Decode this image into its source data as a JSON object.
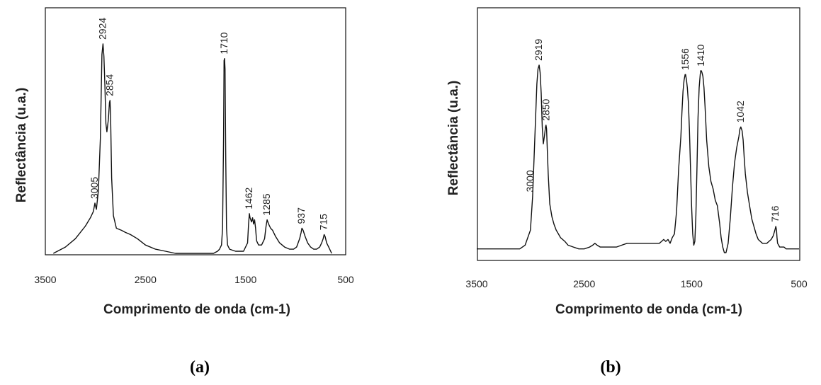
{
  "chart_data": [
    {
      "type": "line",
      "panel_label": "(a)",
      "xlabel": "Comprimento de onda (cm-1)",
      "ylabel": "Reflectância (u.a.)",
      "xlim": [
        3500,
        500
      ],
      "xticks": [
        "3500",
        "2500",
        "1500",
        "500"
      ],
      "peak_labels": [
        {
          "x": 3005,
          "y": 0.24,
          "text": "3005"
        },
        {
          "x": 2924,
          "y": 1.0,
          "text": "2924"
        },
        {
          "x": 2854,
          "y": 0.73,
          "text": "2854"
        },
        {
          "x": 1710,
          "y": 0.93,
          "text": "1710"
        },
        {
          "x": 1462,
          "y": 0.19,
          "text": "1462"
        },
        {
          "x": 1285,
          "y": 0.16,
          "text": "1285"
        },
        {
          "x": 937,
          "y": 0.12,
          "text": "937"
        },
        {
          "x": 715,
          "y": 0.09,
          "text": "715"
        }
      ],
      "series": [
        {
          "x": [
            3420,
            3300,
            3200,
            3100,
            3050,
            3020,
            3005,
            2990,
            2970,
            2950,
            2935,
            2924,
            2915,
            2905,
            2895,
            2885,
            2870,
            2860,
            2854,
            2848,
            2838,
            2820,
            2790,
            2740,
            2700,
            2650,
            2580,
            2500,
            2400,
            2300,
            2200,
            2100,
            2000,
            1900,
            1820,
            1780,
            1760,
            1740,
            1730,
            1720,
            1715,
            1710,
            1705,
            1698,
            1690,
            1680,
            1660,
            1600,
            1520,
            1480,
            1470,
            1462,
            1455,
            1440,
            1430,
            1420,
            1410,
            1400,
            1390,
            1370,
            1340,
            1310,
            1295,
            1285,
            1270,
            1250,
            1230,
            1200,
            1160,
            1110,
            1060,
            1020,
            990,
            960,
            945,
            937,
            925,
            905,
            880,
            850,
            820,
            790,
            760,
            740,
            725,
            715,
            705,
            690,
            670,
            650,
            640
          ],
          "y": [
            0.0,
            0.03,
            0.07,
            0.13,
            0.17,
            0.2,
            0.24,
            0.21,
            0.3,
            0.55,
            0.95,
            1.0,
            0.94,
            0.8,
            0.62,
            0.58,
            0.64,
            0.72,
            0.73,
            0.66,
            0.36,
            0.18,
            0.12,
            0.11,
            0.1,
            0.09,
            0.07,
            0.04,
            0.02,
            0.01,
            0.0,
            0.0,
            0.0,
            0.0,
            0.0,
            0.01,
            0.02,
            0.04,
            0.12,
            0.55,
            0.92,
            0.93,
            0.88,
            0.45,
            0.12,
            0.04,
            0.02,
            0.01,
            0.01,
            0.05,
            0.14,
            0.19,
            0.17,
            0.15,
            0.17,
            0.14,
            0.16,
            0.12,
            0.06,
            0.04,
            0.04,
            0.07,
            0.13,
            0.16,
            0.14,
            0.12,
            0.11,
            0.08,
            0.05,
            0.03,
            0.02,
            0.02,
            0.03,
            0.07,
            0.1,
            0.12,
            0.11,
            0.08,
            0.05,
            0.03,
            0.02,
            0.02,
            0.03,
            0.05,
            0.07,
            0.09,
            0.08,
            0.05,
            0.03,
            0.01,
            0.0
          ]
        }
      ]
    },
    {
      "type": "line",
      "panel_label": "(b)",
      "xlabel": "Comprimento de onda (cm-1)",
      "ylabel": "Reflectância (u.a.)",
      "xlim": [
        3500,
        500
      ],
      "xticks": [
        "3500",
        "2500",
        "1500",
        "500"
      ],
      "peak_labels": [
        {
          "x": 3000,
          "y": 0.3,
          "text": "3000"
        },
        {
          "x": 2919,
          "y": 1.0,
          "text": "2919"
        },
        {
          "x": 2850,
          "y": 0.68,
          "text": "2850"
        },
        {
          "x": 1556,
          "y": 0.95,
          "text": "1556"
        },
        {
          "x": 1410,
          "y": 0.97,
          "text": "1410"
        },
        {
          "x": 1042,
          "y": 0.67,
          "text": "1042"
        },
        {
          "x": 716,
          "y": 0.14,
          "text": "716"
        }
      ],
      "series": [
        {
          "x": [
            3500,
            3200,
            3100,
            3050,
            3000,
            2980,
            2960,
            2940,
            2930,
            2919,
            2910,
            2900,
            2890,
            2880,
            2870,
            2860,
            2855,
            2850,
            2843,
            2835,
            2820,
            2800,
            2780,
            2760,
            2740,
            2720,
            2700,
            2680,
            2650,
            2600,
            2550,
            2500,
            2450,
            2420,
            2400,
            2380,
            2350,
            2300,
            2250,
            2200,
            2150,
            2100,
            2050,
            2000,
            1950,
            1900,
            1850,
            1800,
            1780,
            1760,
            1740,
            1720,
            1700,
            1680,
            1660,
            1640,
            1620,
            1600,
            1590,
            1580,
            1570,
            1560,
            1556,
            1548,
            1540,
            1530,
            1520,
            1510,
            1500,
            1490,
            1480,
            1470,
            1460,
            1450,
            1440,
            1430,
            1420,
            1415,
            1410,
            1403,
            1395,
            1385,
            1375,
            1360,
            1340,
            1320,
            1300,
            1280,
            1260,
            1240,
            1225,
            1210,
            1200,
            1195,
            1180,
            1160,
            1140,
            1120,
            1100,
            1080,
            1060,
            1050,
            1042,
            1030,
            1020,
            1010,
            1000,
            980,
            960,
            940,
            920,
            900,
            880,
            860,
            840,
            820,
            800,
            780,
            760,
            740,
            730,
            720,
            716,
            710,
            705,
            700,
            690,
            680,
            660,
            640,
            620,
            600,
            560,
            520,
            500
          ],
          "y": [
            0.02,
            0.02,
            0.02,
            0.04,
            0.12,
            0.3,
            0.6,
            0.9,
            0.98,
            1.0,
            0.96,
            0.85,
            0.67,
            0.58,
            0.62,
            0.67,
            0.68,
            0.66,
            0.55,
            0.42,
            0.26,
            0.19,
            0.15,
            0.12,
            0.1,
            0.08,
            0.07,
            0.06,
            0.04,
            0.03,
            0.02,
            0.02,
            0.03,
            0.04,
            0.05,
            0.04,
            0.03,
            0.03,
            0.03,
            0.03,
            0.04,
            0.05,
            0.05,
            0.05,
            0.05,
            0.05,
            0.05,
            0.05,
            0.06,
            0.07,
            0.06,
            0.07,
            0.05,
            0.08,
            0.1,
            0.22,
            0.45,
            0.62,
            0.75,
            0.86,
            0.92,
            0.95,
            0.95,
            0.92,
            0.88,
            0.8,
            0.65,
            0.45,
            0.25,
            0.1,
            0.04,
            0.06,
            0.2,
            0.45,
            0.72,
            0.88,
            0.95,
            0.97,
            0.97,
            0.96,
            0.94,
            0.88,
            0.78,
            0.6,
            0.46,
            0.38,
            0.34,
            0.28,
            0.25,
            0.16,
            0.08,
            0.03,
            0.01,
            0.0,
            0.0,
            0.05,
            0.18,
            0.35,
            0.48,
            0.56,
            0.62,
            0.66,
            0.67,
            0.65,
            0.6,
            0.5,
            0.42,
            0.32,
            0.25,
            0.18,
            0.14,
            0.1,
            0.07,
            0.06,
            0.05,
            0.05,
            0.05,
            0.06,
            0.07,
            0.09,
            0.11,
            0.13,
            0.14,
            0.12,
            0.08,
            0.05,
            0.04,
            0.03,
            0.03,
            0.03,
            0.02,
            0.02,
            0.02,
            0.02,
            0.02
          ]
        }
      ]
    }
  ]
}
